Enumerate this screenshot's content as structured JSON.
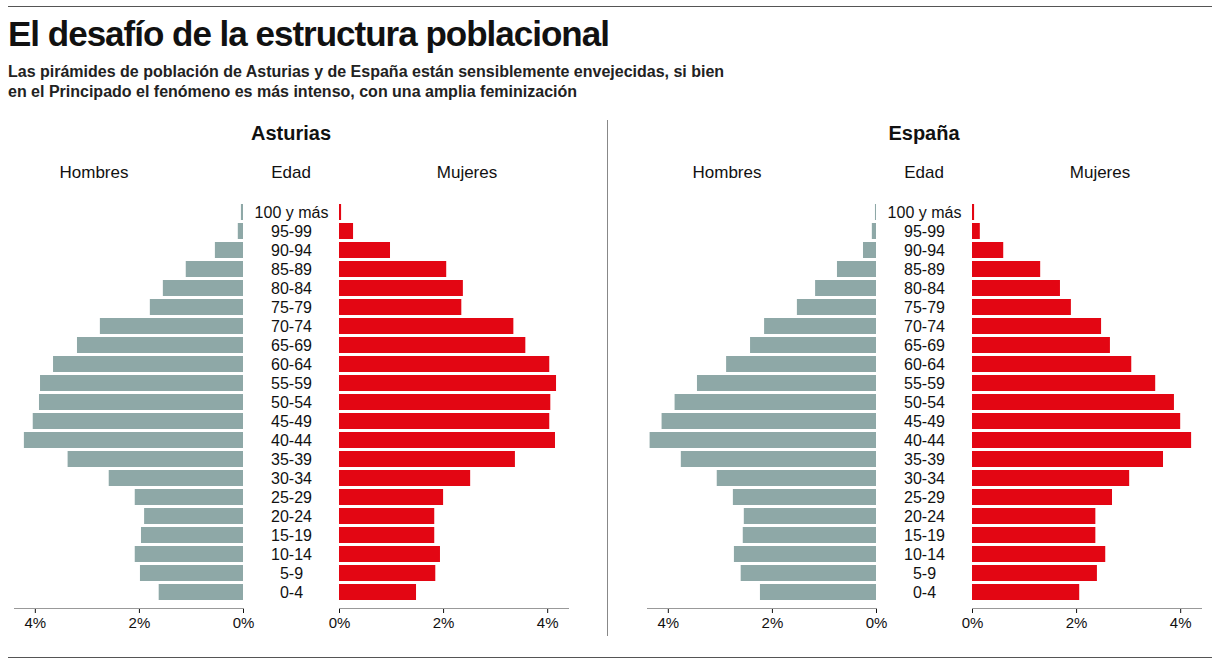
{
  "title": "El desafío de la estructura poblacional",
  "subtitle": "Las pirámides de población de Asturias y de España están sensiblemente envejecidas, si bien en el Principado el fenómeno es más intenso, con una amplia feminización",
  "chart_data": [
    {
      "type": "bar",
      "title": "Asturias",
      "orientation": "horizontal",
      "ylabel": "Edad",
      "categories": [
        "100 y más",
        "95-99",
        "90-94",
        "85-89",
        "80-84",
        "75-79",
        "70-74",
        "65-69",
        "60-64",
        "55-59",
        "50-54",
        "45-49",
        "40-44",
        "35-39",
        "30-34",
        "25-29",
        "20-24",
        "15-19",
        "10-14",
        "5-9",
        "0-4"
      ],
      "series": [
        {
          "name": "Hombres",
          "color": "#8ea8a7",
          "values": [
            0.04,
            0.1,
            0.54,
            1.1,
            1.54,
            1.79,
            2.75,
            3.19,
            3.65,
            3.9,
            3.92,
            4.04,
            4.21,
            3.37,
            2.58,
            2.08,
            1.9,
            1.96,
            2.08,
            1.98,
            1.62
          ]
        },
        {
          "name": "Mujeres",
          "color": "#e30613",
          "values": [
            0.04,
            0.27,
            0.98,
            2.06,
            2.38,
            2.35,
            3.35,
            3.58,
            4.04,
            4.17,
            4.06,
            4.04,
            4.15,
            3.38,
            2.52,
            2.0,
            1.83,
            1.83,
            1.94,
            1.85,
            1.48
          ]
        }
      ],
      "xlim": [
        0,
        4.4
      ],
      "xticks": [
        {
          "value": 0,
          "label": "0%"
        },
        {
          "value": 2,
          "label": "2%"
        },
        {
          "value": 4,
          "label": "4%"
        }
      ],
      "grid": false,
      "data_labels": false
    },
    {
      "type": "bar",
      "title": "España",
      "orientation": "horizontal",
      "ylabel": "Edad",
      "categories": [
        "100 y más",
        "95-99",
        "90-94",
        "85-89",
        "80-84",
        "75-79",
        "70-74",
        "65-69",
        "60-64",
        "55-59",
        "50-54",
        "45-49",
        "40-44",
        "35-39",
        "30-34",
        "25-29",
        "20-24",
        "15-19",
        "10-14",
        "5-9",
        "0-4"
      ],
      "series": [
        {
          "name": "Hombres",
          "color": "#8ea8a7",
          "values": [
            0.02,
            0.08,
            0.25,
            0.75,
            1.17,
            1.52,
            2.15,
            2.42,
            2.88,
            3.44,
            3.87,
            4.12,
            4.35,
            3.75,
            3.06,
            2.75,
            2.54,
            2.56,
            2.73,
            2.6,
            2.23
          ]
        },
        {
          "name": "Mujeres",
          "color": "#e30613",
          "values": [
            0.04,
            0.15,
            0.6,
            1.31,
            1.69,
            1.9,
            2.48,
            2.65,
            3.06,
            3.52,
            3.88,
            4.0,
            4.21,
            3.67,
            3.02,
            2.69,
            2.37,
            2.37,
            2.56,
            2.4,
            2.06
          ]
        }
      ],
      "xlim": [
        0,
        4.4
      ],
      "xticks": [
        {
          "value": 0,
          "label": "0%"
        },
        {
          "value": 2,
          "label": "2%"
        },
        {
          "value": 4,
          "label": "4%"
        }
      ],
      "grid": false,
      "data_labels": false
    }
  ]
}
